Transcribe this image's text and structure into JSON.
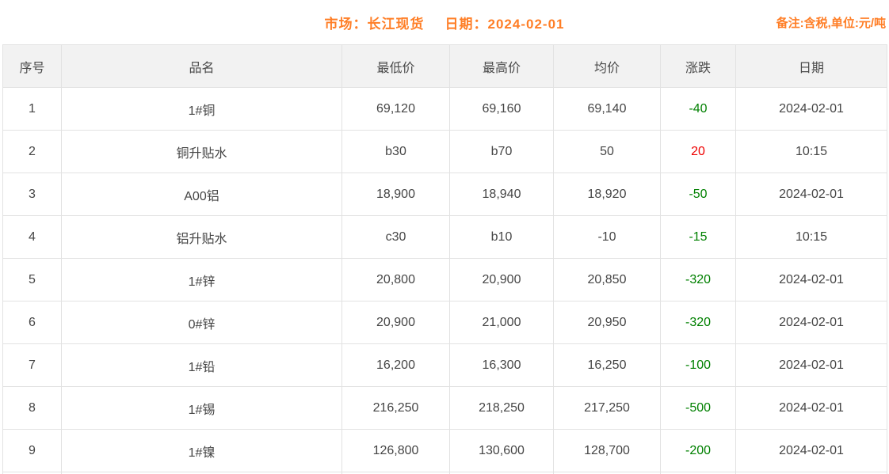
{
  "header": {
    "market_label": "市场：长江现货",
    "date_label": "日期：2024-02-01",
    "note": "备注:含税,单位:元/吨"
  },
  "table": {
    "columns": [
      "序号",
      "品名",
      "最低价",
      "最高价",
      "均价",
      "涨跌",
      "日期"
    ],
    "column_keys": [
      "no",
      "name",
      "low",
      "high",
      "avg",
      "change",
      "date"
    ],
    "rows": [
      {
        "no": "1",
        "name": "1#铜",
        "low": "69,120",
        "high": "69,160",
        "avg": "69,140",
        "change": "-40",
        "direction": "down",
        "date": "2024-02-01"
      },
      {
        "no": "2",
        "name": "铜升贴水",
        "low": "b30",
        "high": "b70",
        "avg": "50",
        "change": "20",
        "direction": "up",
        "date": "10:15"
      },
      {
        "no": "3",
        "name": "A00铝",
        "low": "18,900",
        "high": "18,940",
        "avg": "18,920",
        "change": "-50",
        "direction": "down",
        "date": "2024-02-01"
      },
      {
        "no": "4",
        "name": "铝升贴水",
        "low": "c30",
        "high": "b10",
        "avg": "-10",
        "change": "-15",
        "direction": "down",
        "date": "10:15"
      },
      {
        "no": "5",
        "name": "1#锌",
        "low": "20,800",
        "high": "20,900",
        "avg": "20,850",
        "change": "-320",
        "direction": "down",
        "date": "2024-02-01"
      },
      {
        "no": "6",
        "name": "0#锌",
        "low": "20,900",
        "high": "21,000",
        "avg": "20,950",
        "change": "-320",
        "direction": "down",
        "date": "2024-02-01"
      },
      {
        "no": "7",
        "name": "1#铅",
        "low": "16,200",
        "high": "16,300",
        "avg": "16,250",
        "change": "-100",
        "direction": "down",
        "date": "2024-02-01"
      },
      {
        "no": "8",
        "name": "1#锡",
        "low": "216,250",
        "high": "218,250",
        "avg": "217,250",
        "change": "-500",
        "direction": "down",
        "date": "2024-02-01"
      },
      {
        "no": "9",
        "name": "1#镍",
        "low": "126,800",
        "high": "130,600",
        "avg": "128,700",
        "change": "-200",
        "direction": "down",
        "date": "2024-02-01"
      }
    ]
  },
  "colors": {
    "accent_orange": "#ff7e26",
    "change_up_red": "#ee0000",
    "change_down_green": "#008000",
    "header_bg": "#f2f2f2"
  }
}
